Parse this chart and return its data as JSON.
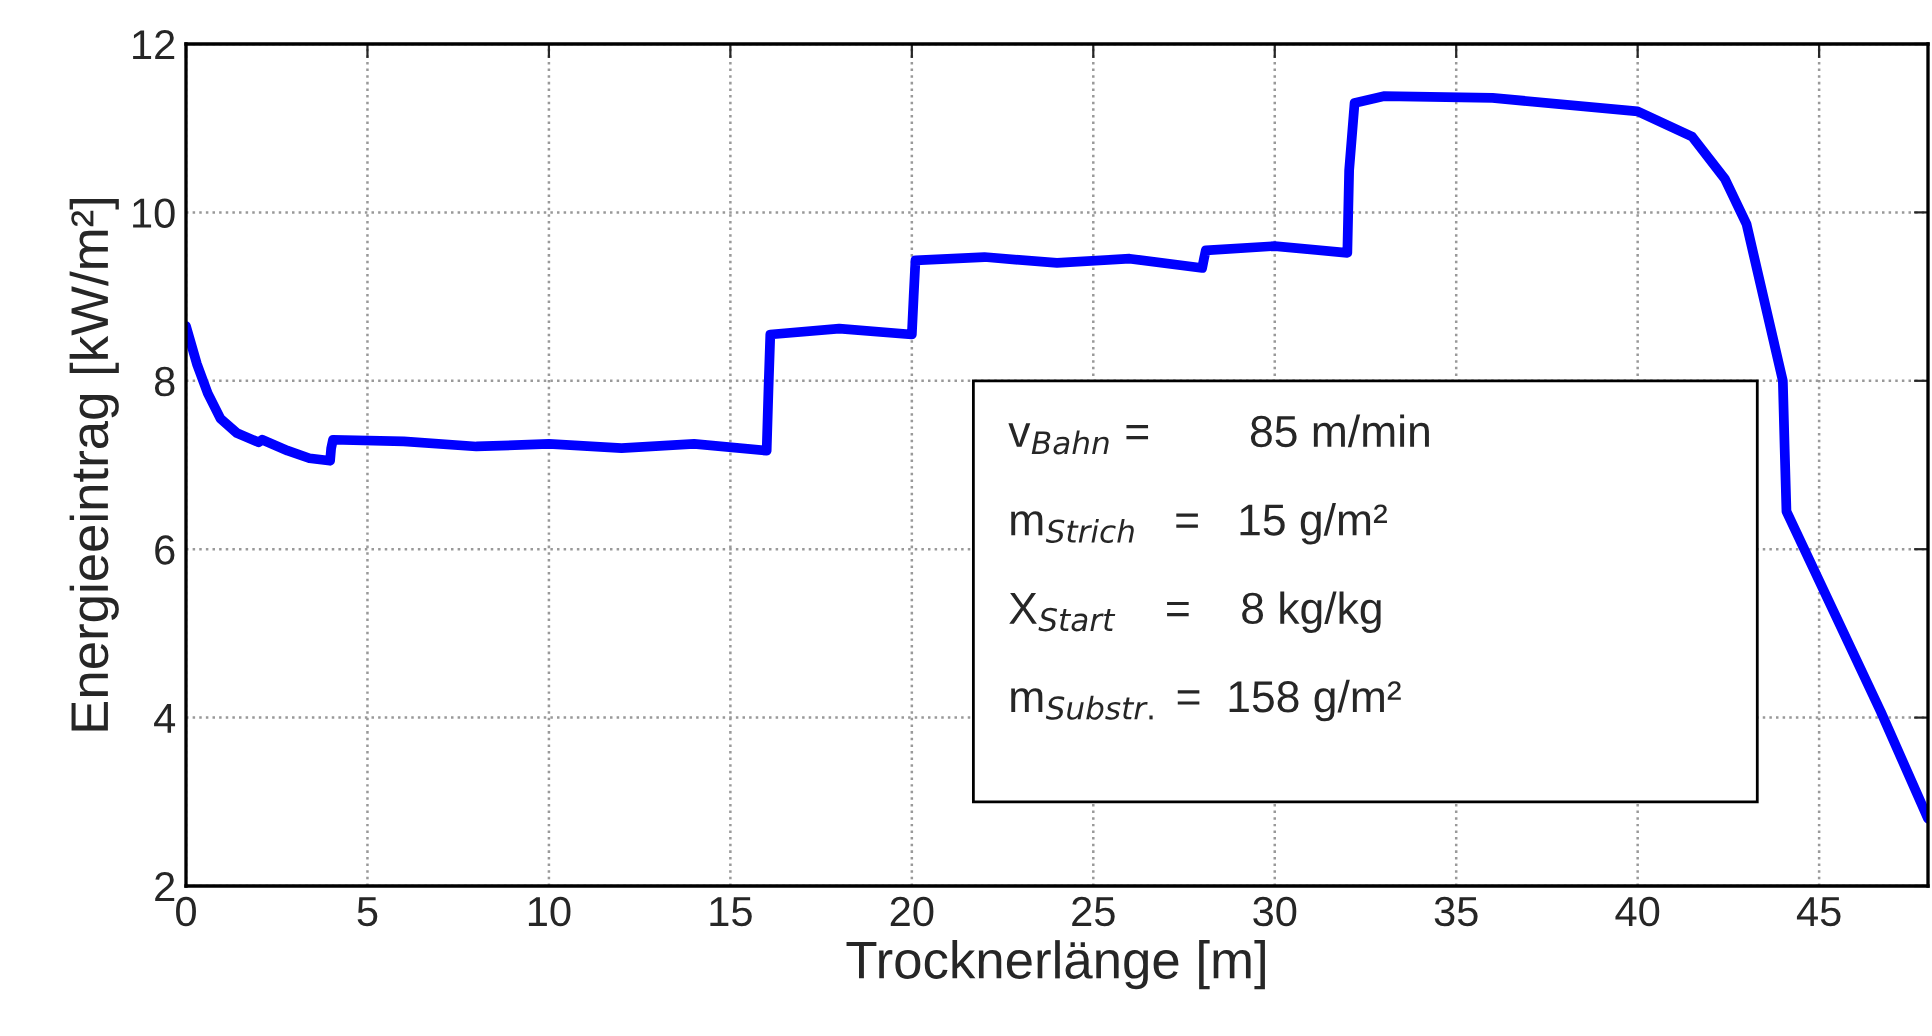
{
  "chart_data": {
    "type": "line",
    "xlabel": "Trocknerlänge [m]",
    "ylabel": "Energieeintrag [kW/m²]",
    "xlim": [
      0,
      48
    ],
    "ylim": [
      2,
      12
    ],
    "xticks": [
      0,
      5,
      10,
      15,
      20,
      25,
      30,
      35,
      40,
      45
    ],
    "yticks": [
      2,
      4,
      6,
      8,
      10,
      12
    ],
    "grid": true,
    "marker": "none",
    "line_style": "solid",
    "series": [
      {
        "color": "#0000ff",
        "x": [
          0,
          0.3,
          0.6,
          0.95,
          1.4,
          2.0,
          2.1,
          2.8,
          3.4,
          3.97,
          4.0,
          4.05,
          6,
          8,
          10,
          12,
          14,
          16,
          16.05,
          16.1,
          18,
          20,
          20.05,
          20.1,
          22,
          24,
          26,
          28,
          28.05,
          28.1,
          30,
          32,
          32.05,
          32.2,
          33,
          36,
          40,
          41.5,
          42.4,
          43.0,
          44.0,
          44.05,
          44.1,
          45.4,
          46.7,
          48
        ],
        "values": [
          8.65,
          8.2,
          7.85,
          7.55,
          7.38,
          7.27,
          7.3,
          7.17,
          7.08,
          7.05,
          7.2,
          7.3,
          7.28,
          7.22,
          7.25,
          7.2,
          7.25,
          7.17,
          7.9,
          8.55,
          8.62,
          8.55,
          9.0,
          9.43,
          9.47,
          9.4,
          9.45,
          9.34,
          9.45,
          9.55,
          9.6,
          9.52,
          10.5,
          11.3,
          11.38,
          11.36,
          11.2,
          10.9,
          10.4,
          9.86,
          8.0,
          7.2,
          6.45,
          5.26,
          4.07,
          2.8
        ]
      }
    ],
    "annotations": [
      "v$_{Bahn}$ =        85 m/min",
      "m$_{Strich}$   =   15 g/m²",
      "X$_{Start}$    =    8 kg/kg",
      "m$_{Substr.}$ =  158 g/m²"
    ]
  }
}
